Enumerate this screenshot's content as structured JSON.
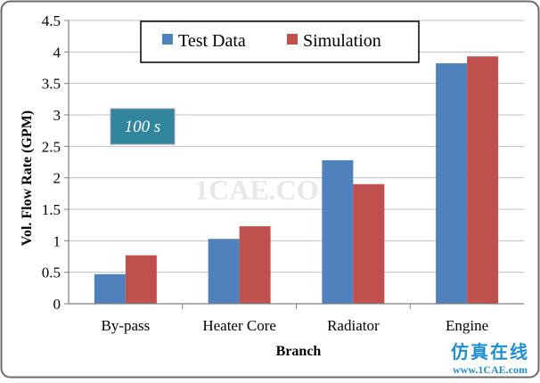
{
  "chart_data": {
    "type": "bar",
    "categories": [
      "By-pass",
      "Heater Core",
      "Radiator",
      "Engine"
    ],
    "series": [
      {
        "name": "Test Data",
        "values": [
          0.47,
          1.03,
          2.28,
          3.82
        ],
        "color": "#4F81BD"
      },
      {
        "name": "Simulation",
        "values": [
          0.77,
          1.23,
          1.9,
          3.93
        ],
        "color": "#C0504D"
      }
    ],
    "xlabel": "Branch",
    "ylabel": "Vol. Flow Rate (GPM)",
    "ylim": [
      0,
      4.5
    ],
    "yticks": [
      "0",
      "0.5",
      "1",
      "1.5",
      "2",
      "2.5",
      "3",
      "3.5",
      "4",
      "4.5"
    ],
    "grid": true,
    "legend": "top-center",
    "annotation": {
      "text": "100 s",
      "color": "#31859C"
    }
  },
  "watermark": {
    "text": "1CAE.COM"
  },
  "footer_logo": {
    "cn": "仿真在线",
    "url": "www.1CAE.com"
  }
}
